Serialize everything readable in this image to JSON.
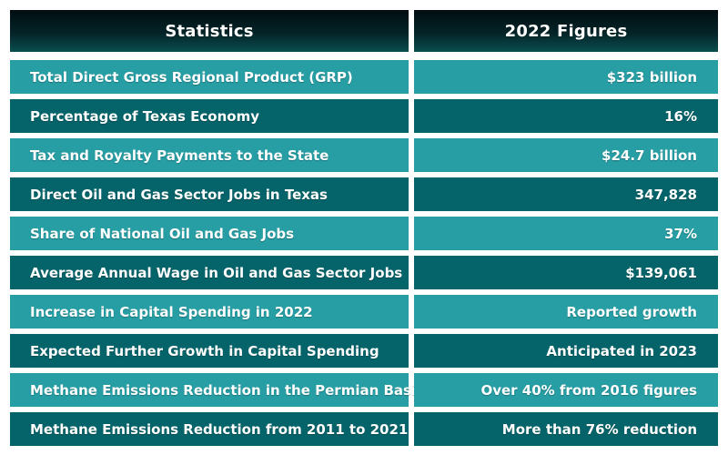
{
  "header": {
    "statistics_label": "Statistics",
    "figures_label": "2022 Figures"
  },
  "rows": [
    {
      "statistic": "Total Direct Gross Regional Product (GRP)",
      "figure": "$323 billion"
    },
    {
      "statistic": "Percentage of Texas Economy",
      "figure": "16%"
    },
    {
      "statistic": "Tax and Royalty Payments to the State",
      "figure": "$24.7 billion"
    },
    {
      "statistic": "Direct Oil and Gas Sector Jobs in Texas",
      "figure": "347,828"
    },
    {
      "statistic": "Share of National Oil and Gas Jobs",
      "figure": "37%"
    },
    {
      "statistic": "Average Annual Wage in Oil and Gas Sector Jobs",
      "figure": "$139,061"
    },
    {
      "statistic": "Increase in Capital Spending in 2022",
      "figure": "Reported growth"
    },
    {
      "statistic": "Expected Further Growth in Capital Spending",
      "figure": "Anticipated in 2023"
    },
    {
      "statistic": "Methane Emissions Reduction in the Permian Basin",
      "figure": "Over 40% from 2016 figures"
    },
    {
      "statistic": "Methane Emissions Reduction from 2011 to 2021",
      "figure": "More than 76% reduction"
    }
  ],
  "colors": {
    "row_light": "#269ea4",
    "row_dark": "#05646a",
    "header_dark": "#020d10",
    "text": "#ffffff"
  }
}
